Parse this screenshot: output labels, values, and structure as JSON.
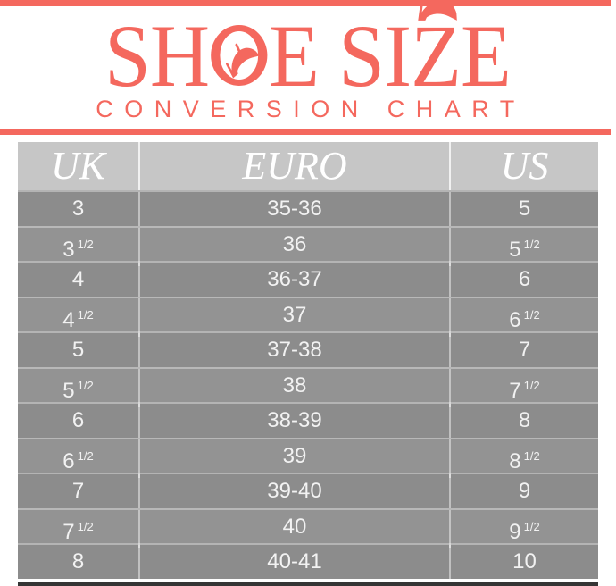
{
  "accent_color": "#F4685E",
  "header": {
    "title_seg_a": "SH",
    "title_seg_b": "E SI",
    "title_seg_c": "Z",
    "title_seg_d": "E",
    "subtitle": "CONVERSION CHART"
  },
  "table": {
    "columns": [
      "UK",
      "EURO",
      "US"
    ],
    "rows": [
      {
        "uk": "3",
        "euro": "35-36",
        "us": "5"
      },
      {
        "uk": "3 1/2",
        "euro": "36",
        "us": "5 1/2"
      },
      {
        "uk": "4",
        "euro": "36-37",
        "us": "6"
      },
      {
        "uk": "4 1/2",
        "euro": "37",
        "us": "6 1/2"
      },
      {
        "uk": "5",
        "euro": "37-38",
        "us": "7"
      },
      {
        "uk": "5 1/2",
        "euro": "38",
        "us": "7 1/2"
      },
      {
        "uk": "6",
        "euro": "38-39",
        "us": "8"
      },
      {
        "uk": "6 1/2",
        "euro": "39",
        "us": "8 1/2"
      },
      {
        "uk": "7",
        "euro": "39-40",
        "us": "9"
      },
      {
        "uk": "7 1/2",
        "euro": "40",
        "us": "9 1/2"
      },
      {
        "uk": "8",
        "euro": "40-41",
        "us": "10"
      }
    ]
  },
  "chart_data": {
    "type": "table",
    "title": "SHOE SIZE CONVERSION CHART",
    "columns": [
      "UK",
      "EURO",
      "US"
    ],
    "rows": [
      [
        "3",
        "35-36",
        "5"
      ],
      [
        "3 1/2",
        "36",
        "5 1/2"
      ],
      [
        "4",
        "36-37",
        "6"
      ],
      [
        "4 1/2",
        "37",
        "6 1/2"
      ],
      [
        "5",
        "37-38",
        "7"
      ],
      [
        "5 1/2",
        "38",
        "7 1/2"
      ],
      [
        "6",
        "38-39",
        "8"
      ],
      [
        "6 1/2",
        "39",
        "8 1/2"
      ],
      [
        "7",
        "39-40",
        "9"
      ],
      [
        "7 1/2",
        "40",
        "9 1/2"
      ],
      [
        "8",
        "40-41",
        "10"
      ]
    ]
  }
}
